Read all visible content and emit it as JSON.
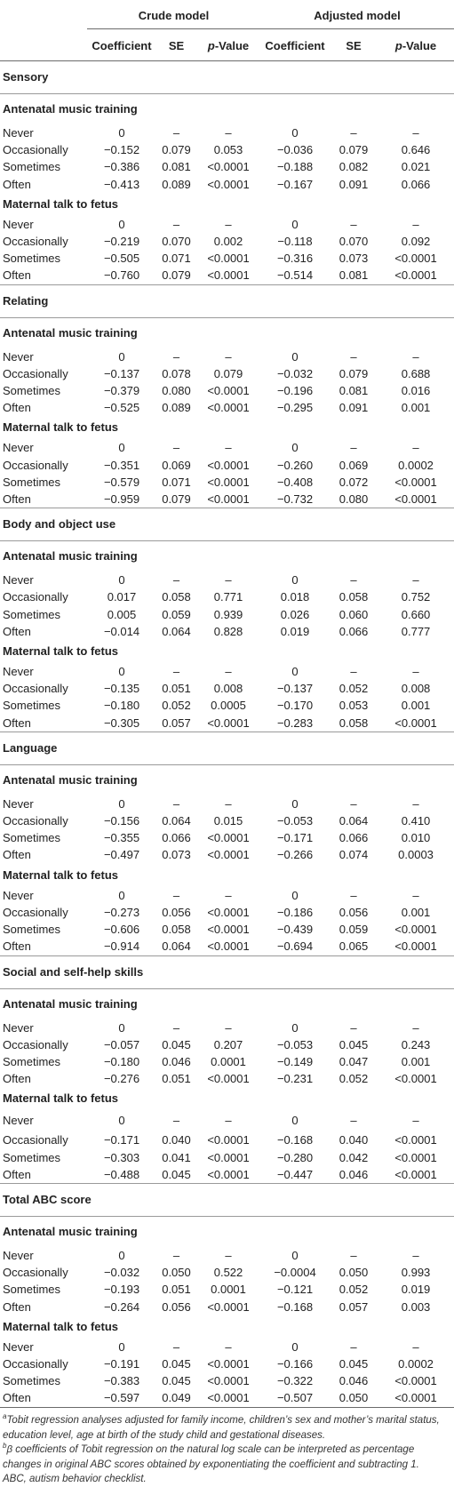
{
  "headers": {
    "crude": "Crude model",
    "adjusted": "Adjusted model",
    "coefficient": "Coefficient",
    "se": "SE",
    "p_prefix": "p",
    "p_suffix": "-Value"
  },
  "sections": [
    {
      "title": "Sensory",
      "groups": [
        {
          "label": "Antenatal music training",
          "rows": [
            [
              "Never",
              "0",
              "–",
              "–",
              "0",
              "–",
              "–"
            ],
            [
              "Occasionally",
              "−0.152",
              "0.079",
              "0.053",
              "−0.036",
              "0.079",
              "0.646"
            ],
            [
              "Sometimes",
              "−0.386",
              "0.081",
              "<0.0001",
              "−0.188",
              "0.082",
              "0.021"
            ],
            [
              "Often",
              "−0.413",
              "0.089",
              "<0.0001",
              "−0.167",
              "0.091",
              "0.066"
            ]
          ]
        },
        {
          "label": "Maternal talk to fetus",
          "rows": [
            [
              "Never",
              "0",
              "–",
              "–",
              "0",
              "–",
              "–"
            ],
            [
              "Occasionally",
              "−0.219",
              "0.070",
              "0.002",
              "−0.118",
              "0.070",
              "0.092"
            ],
            [
              "Sometimes",
              "−0.505",
              "0.071",
              "<0.0001",
              "−0.316",
              "0.073",
              "<0.0001"
            ],
            [
              "Often",
              "−0.760",
              "0.079",
              "<0.0001",
              "−0.514",
              "0.081",
              "<0.0001"
            ]
          ]
        }
      ]
    },
    {
      "title": "Relating",
      "groups": [
        {
          "label": "Antenatal music training",
          "rows": [
            [
              "Never",
              "0",
              "–",
              "–",
              "0",
              "–",
              "–"
            ],
            [
              "Occasionally",
              "−0.137",
              "0.078",
              "0.079",
              "−0.032",
              "0.079",
              "0.688"
            ],
            [
              "Sometimes",
              "−0.379",
              "0.080",
              "<0.0001",
              "−0.196",
              "0.081",
              "0.016"
            ],
            [
              "Often",
              "−0.525",
              "0.089",
              "<0.0001",
              "−0.295",
              "0.091",
              "0.001"
            ]
          ]
        },
        {
          "label": "Maternal talk to fetus",
          "rows": [
            [
              "Never",
              "0",
              "–",
              "–",
              "0",
              "–",
              "–"
            ],
            [
              "Occasionally",
              "−0.351",
              "0.069",
              "<0.0001",
              "−0.260",
              "0.069",
              "0.0002"
            ],
            [
              "Sometimes",
              "−0.579",
              "0.071",
              "<0.0001",
              "−0.408",
              "0.072",
              "<0.0001"
            ],
            [
              "Often",
              "−0.959",
              "0.079",
              "<0.0001",
              "−0.732",
              "0.080",
              "<0.0001"
            ]
          ]
        }
      ]
    },
    {
      "title": "Body and object use",
      "groups": [
        {
          "label": "Antenatal music training",
          "rows": [
            [
              "Never",
              "0",
              "–",
              "–",
              "0",
              "–",
              "–"
            ],
            [
              "Occasionally",
              "0.017",
              "0.058",
              "0.771",
              "0.018",
              "0.058",
              "0.752"
            ],
            [
              "Sometimes",
              "0.005",
              "0.059",
              "0.939",
              "0.026",
              "0.060",
              "0.660"
            ],
            [
              "Often",
              "−0.014",
              "0.064",
              "0.828",
              "0.019",
              "0.066",
              "0.777"
            ]
          ]
        },
        {
          "label": "Maternal talk to fetus",
          "rows": [
            [
              "Never",
              "0",
              "–",
              "–",
              "0",
              "–",
              "–"
            ],
            [
              "Occasionally",
              "−0.135",
              "0.051",
              "0.008",
              "−0.137",
              "0.052",
              "0.008"
            ],
            [
              "Sometimes",
              "−0.180",
              "0.052",
              "0.0005",
              "−0.170",
              "0.053",
              "0.001"
            ],
            [
              "Often",
              "−0.305",
              "0.057",
              "<0.0001",
              "−0.283",
              "0.058",
              "<0.0001"
            ]
          ]
        }
      ]
    },
    {
      "title": "Language",
      "groups": [
        {
          "label": "Antenatal music training",
          "rows": [
            [
              "Never",
              "0",
              "–",
              "–",
              "0",
              "–",
              "–"
            ],
            [
              "Occasionally",
              "−0.156",
              "0.064",
              "0.015",
              "−0.053",
              "0.064",
              "0.410"
            ],
            [
              "Sometimes",
              "−0.355",
              "0.066",
              "<0.0001",
              "−0.171",
              "0.066",
              "0.010"
            ],
            [
              "Often",
              "−0.497",
              "0.073",
              "<0.0001",
              "−0.266",
              "0.074",
              "0.0003"
            ]
          ]
        },
        {
          "label": "Maternal talk to fetus",
          "rows": [
            [
              "Never",
              "0",
              "–",
              "–",
              "0",
              "–",
              "–"
            ],
            [
              "Occasionally",
              "−0.273",
              "0.056",
              "<0.0001",
              "−0.186",
              "0.056",
              "0.001"
            ],
            [
              "Sometimes",
              "−0.606",
              "0.058",
              "<0.0001",
              "−0.439",
              "0.059",
              "<0.0001"
            ],
            [
              "Often",
              "−0.914",
              "0.064",
              "<0.0001",
              "−0.694",
              "0.065",
              "<0.0001"
            ]
          ]
        }
      ]
    },
    {
      "title": "Social and self-help skills",
      "groups": [
        {
          "label": "Antenatal music training",
          "rows": [
            [
              "Never",
              "0",
              "–",
              "–",
              "0",
              "–",
              "–"
            ],
            [
              "Occasionally",
              "−0.057",
              "0.045",
              "0.207",
              "−0.053",
              "0.045",
              "0.243"
            ],
            [
              "Sometimes",
              "−0.180",
              "0.046",
              "0.0001",
              "−0.149",
              "0.047",
              "0.001"
            ],
            [
              "Often",
              "−0.276",
              "0.051",
              "<0.0001",
              "−0.231",
              "0.052",
              "<0.0001"
            ]
          ]
        },
        {
          "label": "Maternal talk to fetus",
          "rows": [
            [
              "Never",
              "0",
              "–",
              "–",
              "0",
              "–",
              "–"
            ],
            [
              "Occasionally",
              "−0.171",
              "0.040",
              "<0.0001",
              "−0.168",
              "0.040",
              "<0.0001"
            ],
            [
              "Sometimes",
              "−0.303",
              "0.041",
              "<0.0001",
              "−0.280",
              "0.042",
              "<0.0001"
            ],
            [
              "Often",
              "−0.488",
              "0.045",
              "<0.0001",
              "−0.447",
              "0.046",
              "<0.0001"
            ]
          ]
        }
      ]
    },
    {
      "title": "Total ABC score",
      "groups": [
        {
          "label": "Antenatal music training",
          "rows": [
            [
              "Never",
              "0",
              "–",
              "–",
              "0",
              "–",
              "–"
            ],
            [
              "Occasionally",
              "−0.032",
              "0.050",
              "0.522",
              "−0.0004",
              "0.050",
              "0.993"
            ],
            [
              "Sometimes",
              "−0.193",
              "0.051",
              "0.0001",
              "−0.121",
              "0.052",
              "0.019"
            ],
            [
              "Often",
              "−0.264",
              "0.056",
              "<0.0001",
              "−0.168",
              "0.057",
              "0.003"
            ]
          ]
        },
        {
          "label": "Maternal talk to fetus",
          "rows": [
            [
              "Never",
              "0",
              "–",
              "–",
              "0",
              "–",
              "–"
            ],
            [
              "Occasionally",
              "−0.191",
              "0.045",
              "<0.0001",
              "−0.166",
              "0.045",
              "0.0002"
            ],
            [
              "Sometimes",
              "−0.383",
              "0.045",
              "<0.0001",
              "−0.322",
              "0.046",
              "<0.0001"
            ],
            [
              "Often",
              "−0.597",
              "0.049",
              "<0.0001",
              "−0.507",
              "0.050",
              "<0.0001"
            ]
          ]
        }
      ]
    }
  ],
  "footnotes": {
    "a_mark": "a",
    "a_text": "Tobit regression analyses adjusted for family income, children’s sex and mother’s marital status, education level, age at birth of the study child and gestational diseases.",
    "b_mark": "b",
    "b_text": "β coefficients of Tobit regression on the natural log scale can be interpreted as percentage changes in original ABC scores obtained by exponentiating the coefficient and subtracting 1.",
    "abbrev": "ABC, autism behavior checklist."
  }
}
